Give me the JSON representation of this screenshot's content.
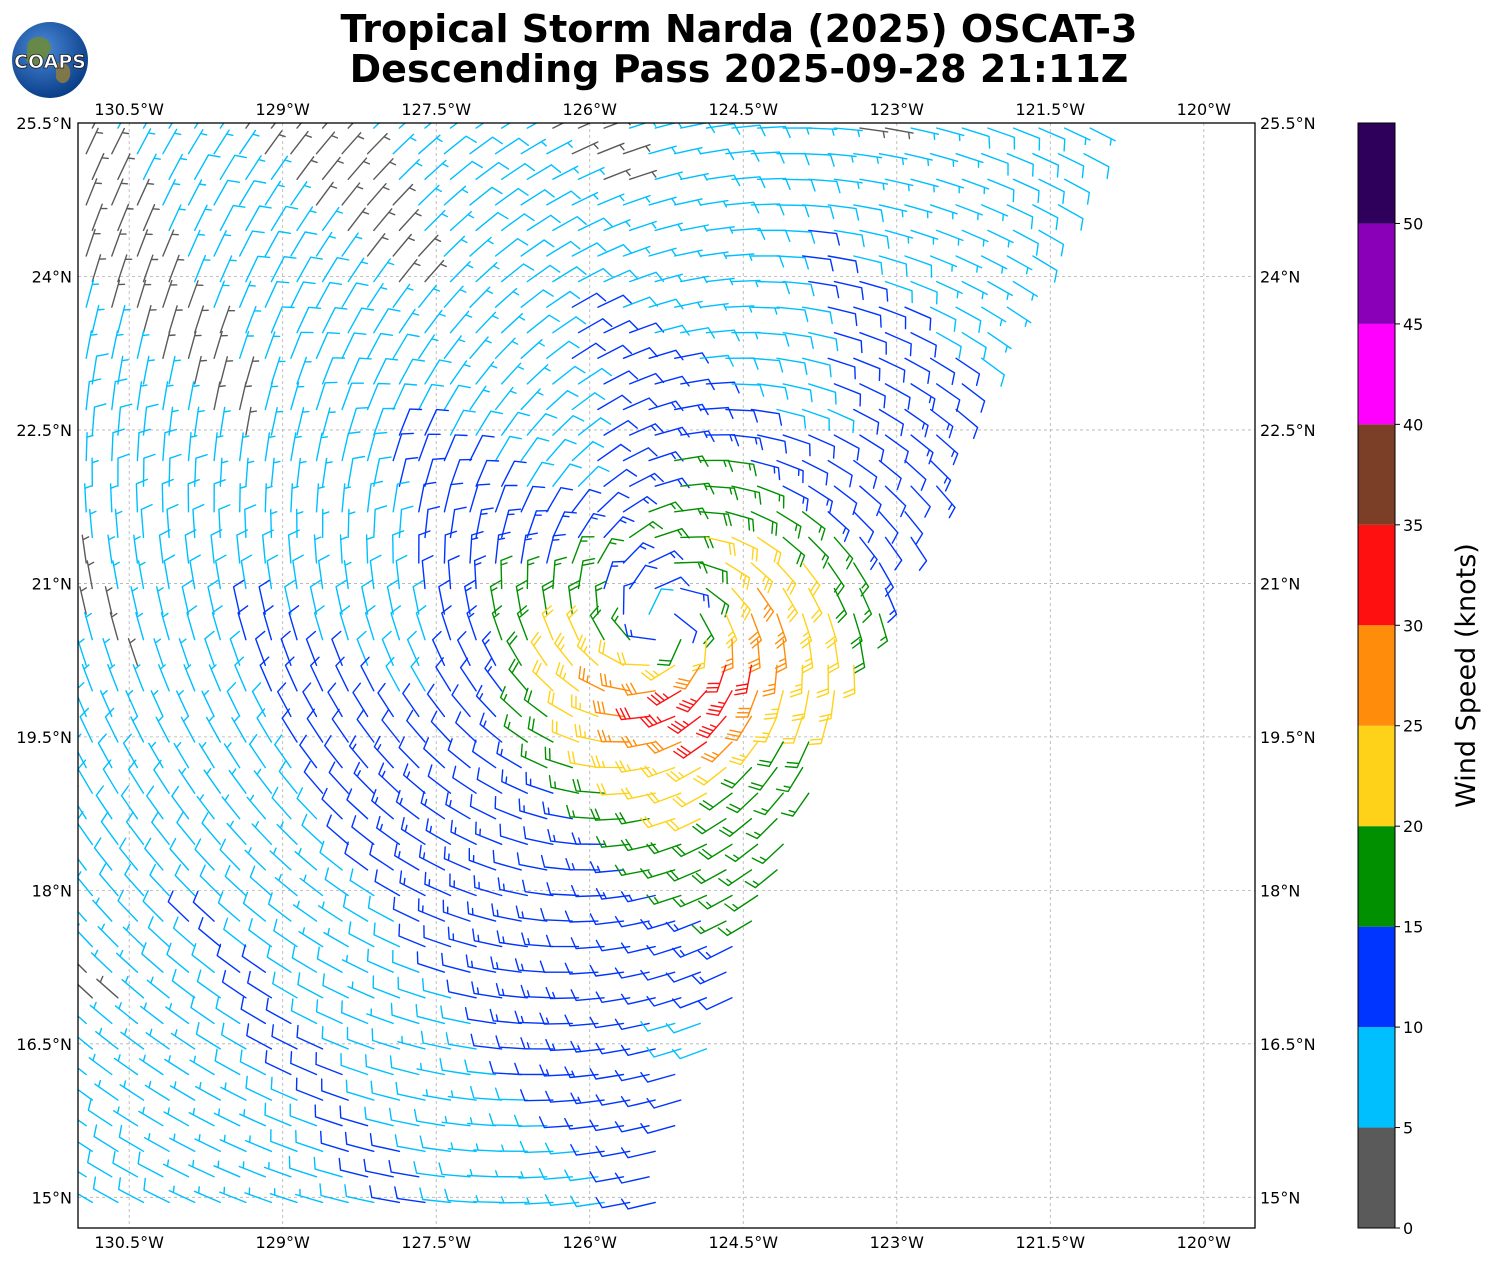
{
  "title": {
    "line1": "Tropical Storm Narda (2025) OSCAT-3",
    "line2": "Descending Pass 2025-09-28 21:11Z"
  },
  "logo": {
    "text": "COAPS"
  },
  "map": {
    "lon_range": [
      -131.0,
      -119.5
    ],
    "lat_range": [
      14.7,
      25.5
    ],
    "lon_ticks": [
      "130.5°W",
      "129°W",
      "127.5°W",
      "126°W",
      "124.5°W",
      "123°W",
      "121.5°W",
      "120°W"
    ],
    "lon_tick_values": [
      -130.5,
      -129,
      -127.5,
      -126,
      -124.5,
      -123,
      -121.5,
      -120
    ],
    "lat_ticks": [
      "25.5°N",
      "24°N",
      "22.5°N",
      "21°N",
      "19.5°N",
      "18°N",
      "16.5°N",
      "15°N"
    ],
    "lat_tick_values": [
      25.5,
      24,
      22.5,
      21,
      19.5,
      18,
      16.5,
      15
    ],
    "gridlines": true,
    "storm_center": {
      "lon": -125.3,
      "lat": 20.6
    }
  },
  "colorbar": {
    "label": "Wind Speed (knots)",
    "ticks": [
      "0",
      "5",
      "10",
      "15",
      "20",
      "25",
      "30",
      "35",
      "40",
      "45",
      "50"
    ],
    "bins": [
      {
        "range": [
          0,
          5
        ],
        "color": "#5a5a5a"
      },
      {
        "range": [
          5,
          10
        ],
        "color": "#00bfff"
      },
      {
        "range": [
          10,
          15
        ],
        "color": "#0035ff"
      },
      {
        "range": [
          15,
          20
        ],
        "color": "#009000"
      },
      {
        "range": [
          20,
          25
        ],
        "color": "#ffd21a"
      },
      {
        "range": [
          25,
          30
        ],
        "color": "#ff8c0a"
      },
      {
        "range": [
          30,
          35
        ],
        "color": "#ff1010"
      },
      {
        "range": [
          35,
          40
        ],
        "color": "#7b3f28"
      },
      {
        "range": [
          40,
          45
        ],
        "color": "#ff00ff"
      },
      {
        "range": [
          45,
          50
        ],
        "color": "#8a00b8"
      },
      {
        "range": [
          50,
          55
        ],
        "color": "#2e005c"
      }
    ]
  },
  "wind_field": {
    "type": "wind-barbs",
    "circulation": "cyclonic",
    "swath_east_edge": [
      {
        "lat": 25.5,
        "lon": -121.0
      },
      {
        "lat": 22.5,
        "lon": -122.4
      },
      {
        "lat": 21.0,
        "lon": -123.0
      },
      {
        "lat": 19.5,
        "lon": -123.7
      },
      {
        "lat": 18.0,
        "lon": -124.2
      },
      {
        "lat": 16.5,
        "lon": -124.8
      },
      {
        "lat": 15.0,
        "lon": -125.4
      }
    ],
    "max_wind_kt": 34,
    "max_wind_location": {
      "lon": -124.8,
      "lat": 19.8
    }
  }
}
